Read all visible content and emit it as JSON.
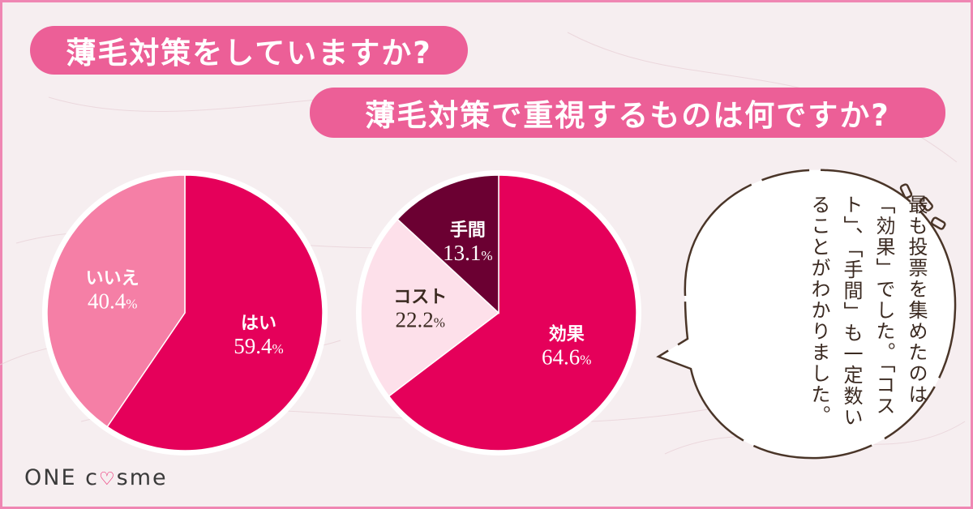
{
  "questions": {
    "q1": "薄毛対策をしていますか?",
    "q2": "薄毛対策で重視するものは何ですか?"
  },
  "colors": {
    "primary": "#e5005a",
    "secondary": "#f57fa6",
    "light": "#fde0ea",
    "dark": "#6b0032",
    "pill": "#ec5f97",
    "frame": "#ef86b3"
  },
  "chart_data": [
    {
      "type": "pie",
      "slices": [
        {
          "label": "はい",
          "value": 59.4,
          "value_text": "59.4",
          "color": "#e5005a"
        },
        {
          "label": "いいえ",
          "value": 40.4,
          "value_text": "40.4",
          "color": "#f57fa6"
        }
      ]
    },
    {
      "type": "pie",
      "slices": [
        {
          "label": "効果",
          "value": 64.6,
          "value_text": "64.6",
          "color": "#e5005a"
        },
        {
          "label": "コスト",
          "value": 22.2,
          "value_text": "22.2",
          "color": "#fde0ea"
        },
        {
          "label": "手間",
          "value": 13.1,
          "value_text": "13.1",
          "color": "#6b0032"
        }
      ]
    }
  ],
  "unit": "%",
  "bubble": {
    "text": "最も投票を集めたのは「効果」でした。「コスト」、「手間」も一定数いることがわかりました。"
  },
  "logo": {
    "part1": "ONE c",
    "heart": "♡",
    "part2": "sme"
  }
}
